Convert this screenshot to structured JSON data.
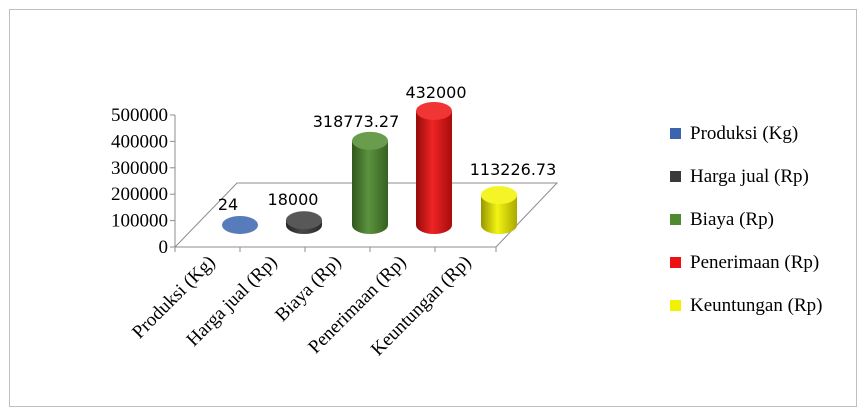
{
  "chart_data": {
    "type": "bar",
    "style": "3d-cylinder",
    "categories": [
      "Produksi (Kg)",
      "Harga jual (Rp)",
      "Biaya (Rp)",
      "Penerimaan (Rp)",
      "Keuntungan (Rp)"
    ],
    "values": [
      24,
      18000,
      318773.27,
      432000,
      113226.73
    ],
    "data_labels": [
      "24",
      "18000",
      "318773.27",
      "432000",
      "113226.73"
    ],
    "y_ticks": [
      "0",
      "100000",
      "200000",
      "300000",
      "400000",
      "500000"
    ],
    "ylim": [
      0,
      500000
    ],
    "colors": [
      "#3a64b0",
      "#3a3a3a",
      "#4e8a2e",
      "#ee1111",
      "#f2f200"
    ],
    "legend_position": "right",
    "title": "",
    "xlabel": "",
    "ylabel": ""
  }
}
